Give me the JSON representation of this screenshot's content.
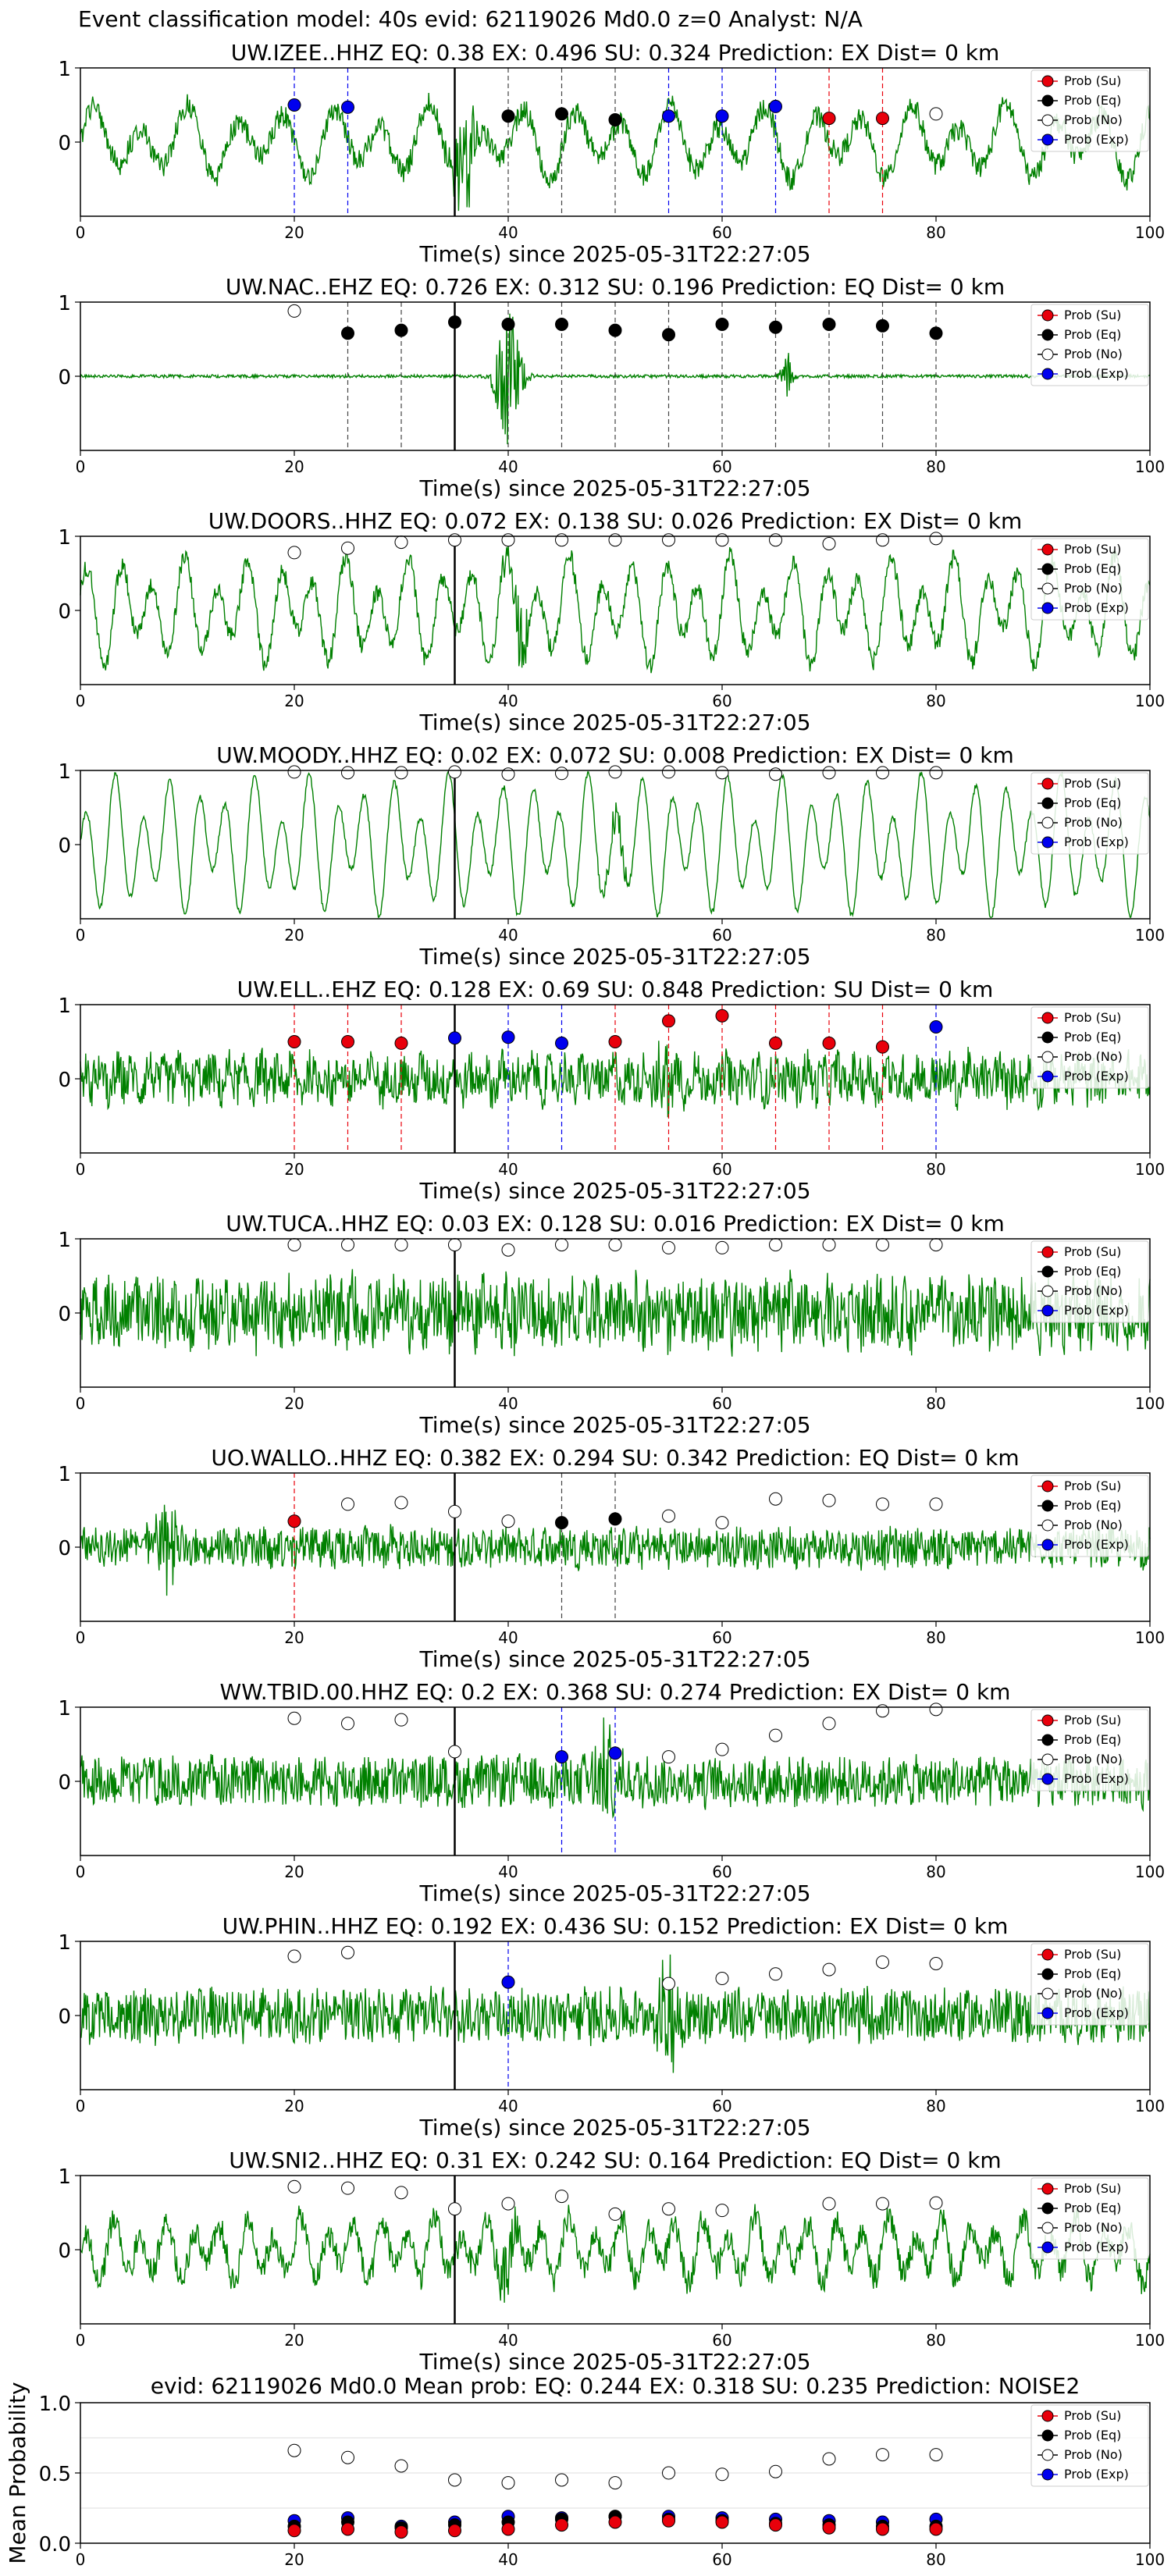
{
  "page_title": "Event classification model: 40s evid: 62119026 Md0.0 z=0 Analyst: N/A",
  "legend_labels": [
    "Prob (Su)",
    "Prob (Eq)",
    "Prob (No)",
    "Prob (Exp)"
  ],
  "colors": {
    "trace": "#008000",
    "su": "#e8000b",
    "eq": "#000000",
    "no": "#ffffff",
    "exp": "#0000ee",
    "origin_line": "#000000"
  },
  "x_axis": {
    "label": "Time(s) since 2025-05-31T22:27:05",
    "ticks": [
      0,
      20,
      40,
      60,
      80,
      100
    ],
    "range": [
      0,
      100
    ]
  },
  "chart_data": [
    {
      "type": "line",
      "title": "UW.IZEE..HHZ   EQ: 0.38  EX: 0.496  SU: 0.324   Prediction: EX    Dist= 0 km",
      "ylim": [
        -1,
        1
      ],
      "yticks": [
        "1",
        "0"
      ],
      "origin_time": 35,
      "vlines": [
        {
          "x": 20,
          "class": "exp"
        },
        {
          "x": 25,
          "class": "exp"
        },
        {
          "x": 40,
          "class": "eq"
        },
        {
          "x": 45,
          "class": "eq"
        },
        {
          "x": 50,
          "class": "eq"
        },
        {
          "x": 55,
          "class": "exp"
        },
        {
          "x": 60,
          "class": "exp"
        },
        {
          "x": 65,
          "class": "exp"
        },
        {
          "x": 70,
          "class": "su"
        },
        {
          "x": 75,
          "class": "su"
        }
      ],
      "points": [
        {
          "x": 20,
          "y": 0.5,
          "class": "exp"
        },
        {
          "x": 25,
          "y": 0.47,
          "class": "exp"
        },
        {
          "x": 40,
          "y": 0.35,
          "class": "eq"
        },
        {
          "x": 45,
          "y": 0.38,
          "class": "eq"
        },
        {
          "x": 50,
          "y": 0.3,
          "class": "eq"
        },
        {
          "x": 55,
          "y": 0.35,
          "class": "exp"
        },
        {
          "x": 60,
          "y": 0.35,
          "class": "exp"
        },
        {
          "x": 65,
          "y": 0.48,
          "class": "exp"
        },
        {
          "x": 70,
          "y": 0.32,
          "class": "su"
        },
        {
          "x": 75,
          "y": 0.32,
          "class": "su"
        },
        {
          "x": 80,
          "y": 0.38,
          "class": "no"
        }
      ],
      "waveform": {
        "noise": 0.15,
        "wave": 0.35,
        "period": 4.5,
        "burst_at": 36,
        "burst_amp": 0.8
      }
    },
    {
      "type": "line",
      "title": "UW.NAC..EHZ   EQ: 0.726  EX: 0.312  SU: 0.196   Prediction: EQ    Dist= 0 km",
      "ylim": [
        -1,
        1
      ],
      "yticks": [
        "1",
        "0"
      ],
      "origin_time": 35,
      "vlines": [
        {
          "x": 25,
          "class": "eq"
        },
        {
          "x": 30,
          "class": "eq"
        },
        {
          "x": 35,
          "class": "eq"
        },
        {
          "x": 40,
          "class": "eq"
        },
        {
          "x": 45,
          "class": "eq"
        },
        {
          "x": 50,
          "class": "eq"
        },
        {
          "x": 55,
          "class": "eq"
        },
        {
          "x": 60,
          "class": "eq"
        },
        {
          "x": 65,
          "class": "eq"
        },
        {
          "x": 70,
          "class": "eq"
        },
        {
          "x": 75,
          "class": "eq"
        },
        {
          "x": 80,
          "class": "eq"
        }
      ],
      "points": [
        {
          "x": 20,
          "y": 0.88,
          "class": "no"
        },
        {
          "x": 25,
          "y": 0.58,
          "class": "eq"
        },
        {
          "x": 30,
          "y": 0.62,
          "class": "eq"
        },
        {
          "x": 35,
          "y": 0.73,
          "class": "eq"
        },
        {
          "x": 40,
          "y": 0.7,
          "class": "eq"
        },
        {
          "x": 45,
          "y": 0.7,
          "class": "eq"
        },
        {
          "x": 50,
          "y": 0.62,
          "class": "eq"
        },
        {
          "x": 55,
          "y": 0.56,
          "class": "eq"
        },
        {
          "x": 60,
          "y": 0.7,
          "class": "eq"
        },
        {
          "x": 65,
          "y": 0.66,
          "class": "eq"
        },
        {
          "x": 70,
          "y": 0.7,
          "class": "eq"
        },
        {
          "x": 75,
          "y": 0.68,
          "class": "eq"
        },
        {
          "x": 80,
          "y": 0.58,
          "class": "eq"
        }
      ],
      "waveform": {
        "noise": 0.02,
        "wave": 0.0,
        "period": 5,
        "burst_at": 40,
        "burst_amp": 0.95,
        "burst2_at": 66,
        "burst2_amp": 0.35
      }
    },
    {
      "type": "line",
      "title": "UW.DOORS..HHZ   EQ: 0.072  EX: 0.138  SU: 0.026   Prediction: EX    Dist= 0 km",
      "ylim": [
        -1,
        1
      ],
      "yticks": [
        "1",
        "0"
      ],
      "origin_time": 35,
      "vlines": [],
      "points": [
        {
          "x": 20,
          "y": 0.78,
          "class": "no"
        },
        {
          "x": 25,
          "y": 0.84,
          "class": "no"
        },
        {
          "x": 30,
          "y": 0.92,
          "class": "no"
        },
        {
          "x": 35,
          "y": 0.95,
          "class": "no"
        },
        {
          "x": 40,
          "y": 0.95,
          "class": "no"
        },
        {
          "x": 45,
          "y": 0.95,
          "class": "no"
        },
        {
          "x": 50,
          "y": 0.95,
          "class": "no"
        },
        {
          "x": 55,
          "y": 0.95,
          "class": "no"
        },
        {
          "x": 60,
          "y": 0.95,
          "class": "no"
        },
        {
          "x": 65,
          "y": 0.95,
          "class": "no"
        },
        {
          "x": 70,
          "y": 0.9,
          "class": "no"
        },
        {
          "x": 75,
          "y": 0.95,
          "class": "no"
        },
        {
          "x": 80,
          "y": 0.97,
          "class": "no"
        }
      ],
      "waveform": {
        "noise": 0.12,
        "wave": 0.5,
        "period": 3,
        "burst_at": 41,
        "burst_amp": 0.5
      }
    },
    {
      "type": "line",
      "title": "UW.MOODY..HHZ   EQ: 0.02  EX: 0.072  SU: 0.008   Prediction: EX    Dist= 0 km",
      "ylim": [
        -1,
        1
      ],
      "yticks": [
        "1",
        "0"
      ],
      "origin_time": 35,
      "vlines": [],
      "points": [
        {
          "x": 20,
          "y": 0.98,
          "class": "no"
        },
        {
          "x": 25,
          "y": 0.97,
          "class": "no"
        },
        {
          "x": 30,
          "y": 0.97,
          "class": "no"
        },
        {
          "x": 35,
          "y": 0.98,
          "class": "no"
        },
        {
          "x": 40,
          "y": 0.95,
          "class": "no"
        },
        {
          "x": 45,
          "y": 0.96,
          "class": "no"
        },
        {
          "x": 50,
          "y": 0.98,
          "class": "no"
        },
        {
          "x": 55,
          "y": 0.98,
          "class": "no"
        },
        {
          "x": 60,
          "y": 0.97,
          "class": "no"
        },
        {
          "x": 65,
          "y": 0.95,
          "class": "no"
        },
        {
          "x": 70,
          "y": 0.97,
          "class": "no"
        },
        {
          "x": 75,
          "y": 0.97,
          "class": "no"
        },
        {
          "x": 80,
          "y": 0.97,
          "class": "no"
        }
      ],
      "waveform": {
        "noise": 0.04,
        "wave": 0.65,
        "period": 2.6,
        "burst_at": 50,
        "burst_amp": 0.3
      }
    },
    {
      "type": "line",
      "title": "UW.ELL..EHZ   EQ: 0.128  EX: 0.69  SU: 0.848   Prediction: SU    Dist= 0 km",
      "ylim": [
        -1,
        1
      ],
      "yticks": [
        "1",
        "0"
      ],
      "origin_time": 35,
      "vlines": [
        {
          "x": 20,
          "class": "su"
        },
        {
          "x": 25,
          "class": "su"
        },
        {
          "x": 30,
          "class": "su"
        },
        {
          "x": 35,
          "class": "exp"
        },
        {
          "x": 40,
          "class": "exp"
        },
        {
          "x": 45,
          "class": "exp"
        },
        {
          "x": 50,
          "class": "su"
        },
        {
          "x": 55,
          "class": "su"
        },
        {
          "x": 60,
          "class": "su"
        },
        {
          "x": 65,
          "class": "su"
        },
        {
          "x": 70,
          "class": "su"
        },
        {
          "x": 75,
          "class": "su"
        },
        {
          "x": 80,
          "class": "exp"
        }
      ],
      "points": [
        {
          "x": 20,
          "y": 0.5,
          "class": "su"
        },
        {
          "x": 25,
          "y": 0.5,
          "class": "su"
        },
        {
          "x": 30,
          "y": 0.48,
          "class": "su"
        },
        {
          "x": 35,
          "y": 0.55,
          "class": "exp"
        },
        {
          "x": 40,
          "y": 0.56,
          "class": "exp"
        },
        {
          "x": 45,
          "y": 0.48,
          "class": "exp"
        },
        {
          "x": 50,
          "y": 0.5,
          "class": "su"
        },
        {
          "x": 55,
          "y": 0.78,
          "class": "su"
        },
        {
          "x": 60,
          "y": 0.85,
          "class": "su"
        },
        {
          "x": 65,
          "y": 0.48,
          "class": "su"
        },
        {
          "x": 70,
          "y": 0.48,
          "class": "su"
        },
        {
          "x": 75,
          "y": 0.43,
          "class": "su"
        },
        {
          "x": 80,
          "y": 0.7,
          "class": "exp"
        }
      ],
      "waveform": {
        "noise": 0.3,
        "wave": 0.1,
        "period": 1.5,
        "burst_at": 55,
        "burst_amp": 0.5
      }
    },
    {
      "type": "line",
      "title": "UW.TUCA..HHZ   EQ: 0.03  EX: 0.128  SU: 0.016   Prediction: EX    Dist= 0 km",
      "ylim": [
        -1,
        1
      ],
      "yticks": [
        "1",
        "0"
      ],
      "origin_time": 35,
      "vlines": [],
      "points": [
        {
          "x": 20,
          "y": 0.92,
          "class": "no"
        },
        {
          "x": 25,
          "y": 0.92,
          "class": "no"
        },
        {
          "x": 30,
          "y": 0.92,
          "class": "no"
        },
        {
          "x": 35,
          "y": 0.92,
          "class": "no"
        },
        {
          "x": 40,
          "y": 0.85,
          "class": "no"
        },
        {
          "x": 45,
          "y": 0.92,
          "class": "no"
        },
        {
          "x": 50,
          "y": 0.92,
          "class": "no"
        },
        {
          "x": 55,
          "y": 0.88,
          "class": "no"
        },
        {
          "x": 60,
          "y": 0.88,
          "class": "no"
        },
        {
          "x": 65,
          "y": 0.92,
          "class": "no"
        },
        {
          "x": 70,
          "y": 0.92,
          "class": "no"
        },
        {
          "x": 75,
          "y": 0.92,
          "class": "no"
        },
        {
          "x": 80,
          "y": 0.92,
          "class": "no"
        }
      ],
      "waveform": {
        "noise": 0.45,
        "wave": 0.1,
        "period": 1.2,
        "burst_at": 0,
        "burst_amp": 0
      }
    },
    {
      "type": "line",
      "title": "UO.WALLO..HHZ   EQ: 0.382  EX: 0.294  SU: 0.342   Prediction: EQ    Dist= 0 km",
      "ylim": [
        -1,
        1
      ],
      "yticks": [
        "1",
        "0"
      ],
      "origin_time": 35,
      "vlines": [
        {
          "x": 20,
          "class": "su"
        },
        {
          "x": 45,
          "class": "eq"
        },
        {
          "x": 50,
          "class": "eq"
        }
      ],
      "points": [
        {
          "x": 20,
          "y": 0.35,
          "class": "su"
        },
        {
          "x": 25,
          "y": 0.58,
          "class": "no"
        },
        {
          "x": 30,
          "y": 0.6,
          "class": "no"
        },
        {
          "x": 35,
          "y": 0.48,
          "class": "no"
        },
        {
          "x": 40,
          "y": 0.35,
          "class": "no"
        },
        {
          "x": 45,
          "y": 0.33,
          "class": "eq"
        },
        {
          "x": 50,
          "y": 0.38,
          "class": "eq"
        },
        {
          "x": 55,
          "y": 0.42,
          "class": "no"
        },
        {
          "x": 60,
          "y": 0.33,
          "class": "no"
        },
        {
          "x": 65,
          "y": 0.65,
          "class": "no"
        },
        {
          "x": 70,
          "y": 0.63,
          "class": "no"
        },
        {
          "x": 75,
          "y": 0.58,
          "class": "no"
        },
        {
          "x": 80,
          "y": 0.58,
          "class": "no"
        }
      ],
      "waveform": {
        "noise": 0.25,
        "wave": 0.05,
        "period": 1.2,
        "burst_at": 8,
        "burst_amp": 0.6
      }
    },
    {
      "type": "line",
      "title": "WW.TBID.00.HHZ   EQ: 0.2  EX: 0.368  SU: 0.274   Prediction: EX    Dist= 0 km",
      "ylim": [
        -1,
        1
      ],
      "yticks": [
        "1",
        "0"
      ],
      "origin_time": 35,
      "vlines": [
        {
          "x": 45,
          "class": "exp"
        },
        {
          "x": 50,
          "class": "exp"
        }
      ],
      "points": [
        {
          "x": 20,
          "y": 0.85,
          "class": "no"
        },
        {
          "x": 25,
          "y": 0.78,
          "class": "no"
        },
        {
          "x": 30,
          "y": 0.83,
          "class": "no"
        },
        {
          "x": 35,
          "y": 0.4,
          "class": "no"
        },
        {
          "x": 45,
          "y": 0.33,
          "class": "exp"
        },
        {
          "x": 50,
          "y": 0.38,
          "class": "exp"
        },
        {
          "x": 55,
          "y": 0.33,
          "class": "no"
        },
        {
          "x": 60,
          "y": 0.43,
          "class": "no"
        },
        {
          "x": 65,
          "y": 0.62,
          "class": "no"
        },
        {
          "x": 70,
          "y": 0.78,
          "class": "no"
        },
        {
          "x": 75,
          "y": 0.95,
          "class": "no"
        },
        {
          "x": 80,
          "y": 0.97,
          "class": "no"
        }
      ],
      "waveform": {
        "noise": 0.32,
        "wave": 0.05,
        "period": 1.2,
        "burst_at": 49,
        "burst_amp": 0.7
      }
    },
    {
      "type": "line",
      "title": "UW.PHIN..HHZ   EQ: 0.192  EX: 0.436  SU: 0.152   Prediction: EX    Dist= 0 km",
      "ylim": [
        -1,
        1
      ],
      "yticks": [
        "1",
        "0"
      ],
      "origin_time": 35,
      "vlines": [
        {
          "x": 40,
          "class": "exp"
        }
      ],
      "points": [
        {
          "x": 20,
          "y": 0.8,
          "class": "no"
        },
        {
          "x": 25,
          "y": 0.85,
          "class": "no"
        },
        {
          "x": 40,
          "y": 0.45,
          "class": "exp"
        },
        {
          "x": 55,
          "y": 0.43,
          "class": "no"
        },
        {
          "x": 60,
          "y": 0.5,
          "class": "no"
        },
        {
          "x": 65,
          "y": 0.56,
          "class": "no"
        },
        {
          "x": 70,
          "y": 0.62,
          "class": "no"
        },
        {
          "x": 75,
          "y": 0.72,
          "class": "no"
        },
        {
          "x": 80,
          "y": 0.7,
          "class": "no"
        }
      ],
      "waveform": {
        "noise": 0.35,
        "wave": 0.05,
        "period": 1.2,
        "burst_at": 55,
        "burst_amp": 0.6
      }
    },
    {
      "type": "line",
      "title": "UW.SNI2..HHZ   EQ: 0.31  EX: 0.242  SU: 0.164   Prediction: EQ    Dist= 0 km",
      "ylim": [
        -1,
        1
      ],
      "yticks": [
        "1",
        "0"
      ],
      "origin_time": 35,
      "vlines": [],
      "points": [
        {
          "x": 20,
          "y": 0.85,
          "class": "no"
        },
        {
          "x": 25,
          "y": 0.83,
          "class": "no"
        },
        {
          "x": 30,
          "y": 0.77,
          "class": "no"
        },
        {
          "x": 35,
          "y": 0.55,
          "class": "no"
        },
        {
          "x": 40,
          "y": 0.62,
          "class": "no"
        },
        {
          "x": 45,
          "y": 0.72,
          "class": "no"
        },
        {
          "x": 50,
          "y": 0.48,
          "class": "no"
        },
        {
          "x": 55,
          "y": 0.55,
          "class": "no"
        },
        {
          "x": 60,
          "y": 0.53,
          "class": "no"
        },
        {
          "x": 70,
          "y": 0.62,
          "class": "no"
        },
        {
          "x": 75,
          "y": 0.62,
          "class": "no"
        },
        {
          "x": 80,
          "y": 0.63,
          "class": "no"
        }
      ],
      "waveform": {
        "noise": 0.18,
        "wave": 0.3,
        "period": 2.5,
        "burst_at": 40,
        "burst_amp": 0.4
      }
    },
    {
      "type": "scatter",
      "title": "evid: 62119026  Md0.0   Mean prob:   EQ: 0.244  EX: 0.318  SU: 0.235   Prediction: NOISE2",
      "ylabel": "Mean Probability",
      "ylim": [
        0,
        1
      ],
      "yticks": [
        "1.0",
        "0.5",
        "0.0"
      ],
      "is_summary": true,
      "x": [
        20,
        25,
        30,
        35,
        40,
        45,
        50,
        55,
        60,
        65,
        70,
        75,
        80
      ],
      "series": [
        {
          "name": "Prob (No)",
          "class": "no",
          "values": [
            0.66,
            0.61,
            0.55,
            0.45,
            0.43,
            0.45,
            0.43,
            0.5,
            0.49,
            0.51,
            0.6,
            0.63,
            0.63
          ]
        },
        {
          "name": "Prob (Exp)",
          "class": "exp",
          "values": [
            0.16,
            0.18,
            0.12,
            0.15,
            0.19,
            0.18,
            0.19,
            0.19,
            0.18,
            0.17,
            0.16,
            0.15,
            0.17
          ]
        },
        {
          "name": "Prob (Eq)",
          "class": "eq",
          "values": [
            0.12,
            0.15,
            0.11,
            0.13,
            0.15,
            0.17,
            0.19,
            0.17,
            0.16,
            0.14,
            0.13,
            0.12,
            0.12
          ]
        },
        {
          "name": "Prob (Su)",
          "class": "su",
          "values": [
            0.09,
            0.1,
            0.08,
            0.09,
            0.1,
            0.13,
            0.15,
            0.16,
            0.15,
            0.13,
            0.11,
            0.1,
            0.1
          ]
        }
      ]
    }
  ]
}
